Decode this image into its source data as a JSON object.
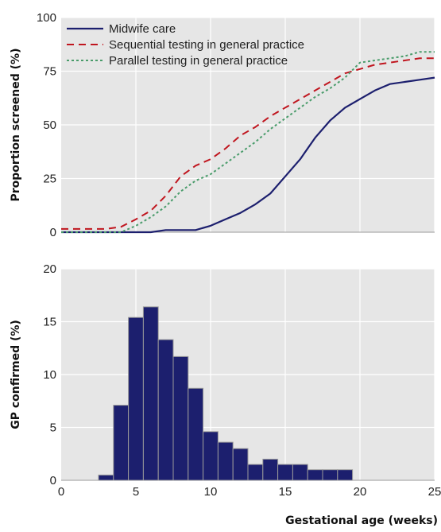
{
  "chart_data": [
    {
      "type": "line",
      "ylabel": "Proportion screened (%)",
      "xlim": [
        0,
        25
      ],
      "ylim": [
        0,
        100
      ],
      "xticks": [
        0,
        5,
        10,
        15,
        20,
        25
      ],
      "yticks": [
        0,
        25,
        50,
        75,
        100
      ],
      "grid": true,
      "legend": "top-left",
      "background": "#e6e6e6",
      "series": [
        {
          "name": "Midwife care",
          "color": "#1c1f6e",
          "dash": "solid",
          "x": [
            0,
            6,
            7,
            9,
            10,
            11,
            12,
            13,
            14,
            15,
            16,
            17,
            18,
            19,
            20,
            21,
            22,
            23,
            24,
            25
          ],
          "y": [
            0,
            0,
            1,
            1,
            3,
            6,
            9,
            13,
            18,
            26,
            34,
            44,
            52,
            58,
            62,
            66,
            69,
            70,
            71,
            72
          ]
        },
        {
          "name": "Sequential testing in general practice",
          "color": "#c0161f",
          "dash": "dashed",
          "x": [
            0,
            3,
            4,
            5,
            6,
            7,
            8,
            9,
            10,
            11,
            12,
            13,
            14,
            15,
            16,
            17,
            18,
            19,
            20,
            21,
            22,
            23,
            24,
            25
          ],
          "y": [
            1.5,
            1.5,
            2.5,
            6,
            10,
            17,
            26,
            31,
            34,
            39,
            45,
            49,
            54,
            58,
            62,
            66,
            70,
            74,
            76,
            78,
            79,
            80,
            81,
            81
          ]
        },
        {
          "name": "Parallel testing in general practice",
          "color": "#4a9c6b",
          "dash": "dotted",
          "x": [
            0,
            4,
            5,
            6,
            7,
            8,
            9,
            10,
            11,
            12,
            13,
            14,
            15,
            16,
            17,
            18,
            19,
            20,
            21,
            22,
            23,
            24,
            25
          ],
          "y": [
            0,
            0,
            3,
            7,
            12,
            19,
            24,
            27,
            32,
            37,
            42,
            48,
            53,
            58,
            63,
            67,
            72,
            79,
            80,
            81,
            82,
            84,
            84
          ]
        }
      ]
    },
    {
      "type": "bar",
      "ylabel": "GP confirmed (%)",
      "xlabel": "Gestational age (weeks)",
      "xlim": [
        0,
        25
      ],
      "ylim": [
        0,
        20
      ],
      "xticks": [
        0,
        5,
        10,
        15,
        20,
        25
      ],
      "yticks": [
        0,
        5,
        10,
        15,
        20
      ],
      "grid": true,
      "background": "#e6e6e6",
      "bar_color": "#1c1f6e",
      "bin_width": 1,
      "bin_starts": [
        2.5,
        3.5,
        4.5,
        5.5,
        6.5,
        7.5,
        8.5,
        9.5,
        10.5,
        11.5,
        12.5,
        13.5,
        14.5,
        15.5,
        16.5,
        17.5,
        18.5
      ],
      "values": [
        0.5,
        7.1,
        15.4,
        16.4,
        13.3,
        11.7,
        8.7,
        4.6,
        3.6,
        3.0,
        1.5,
        2.0,
        1.5,
        1.5,
        1.0,
        1.0,
        1.0
      ]
    }
  ]
}
